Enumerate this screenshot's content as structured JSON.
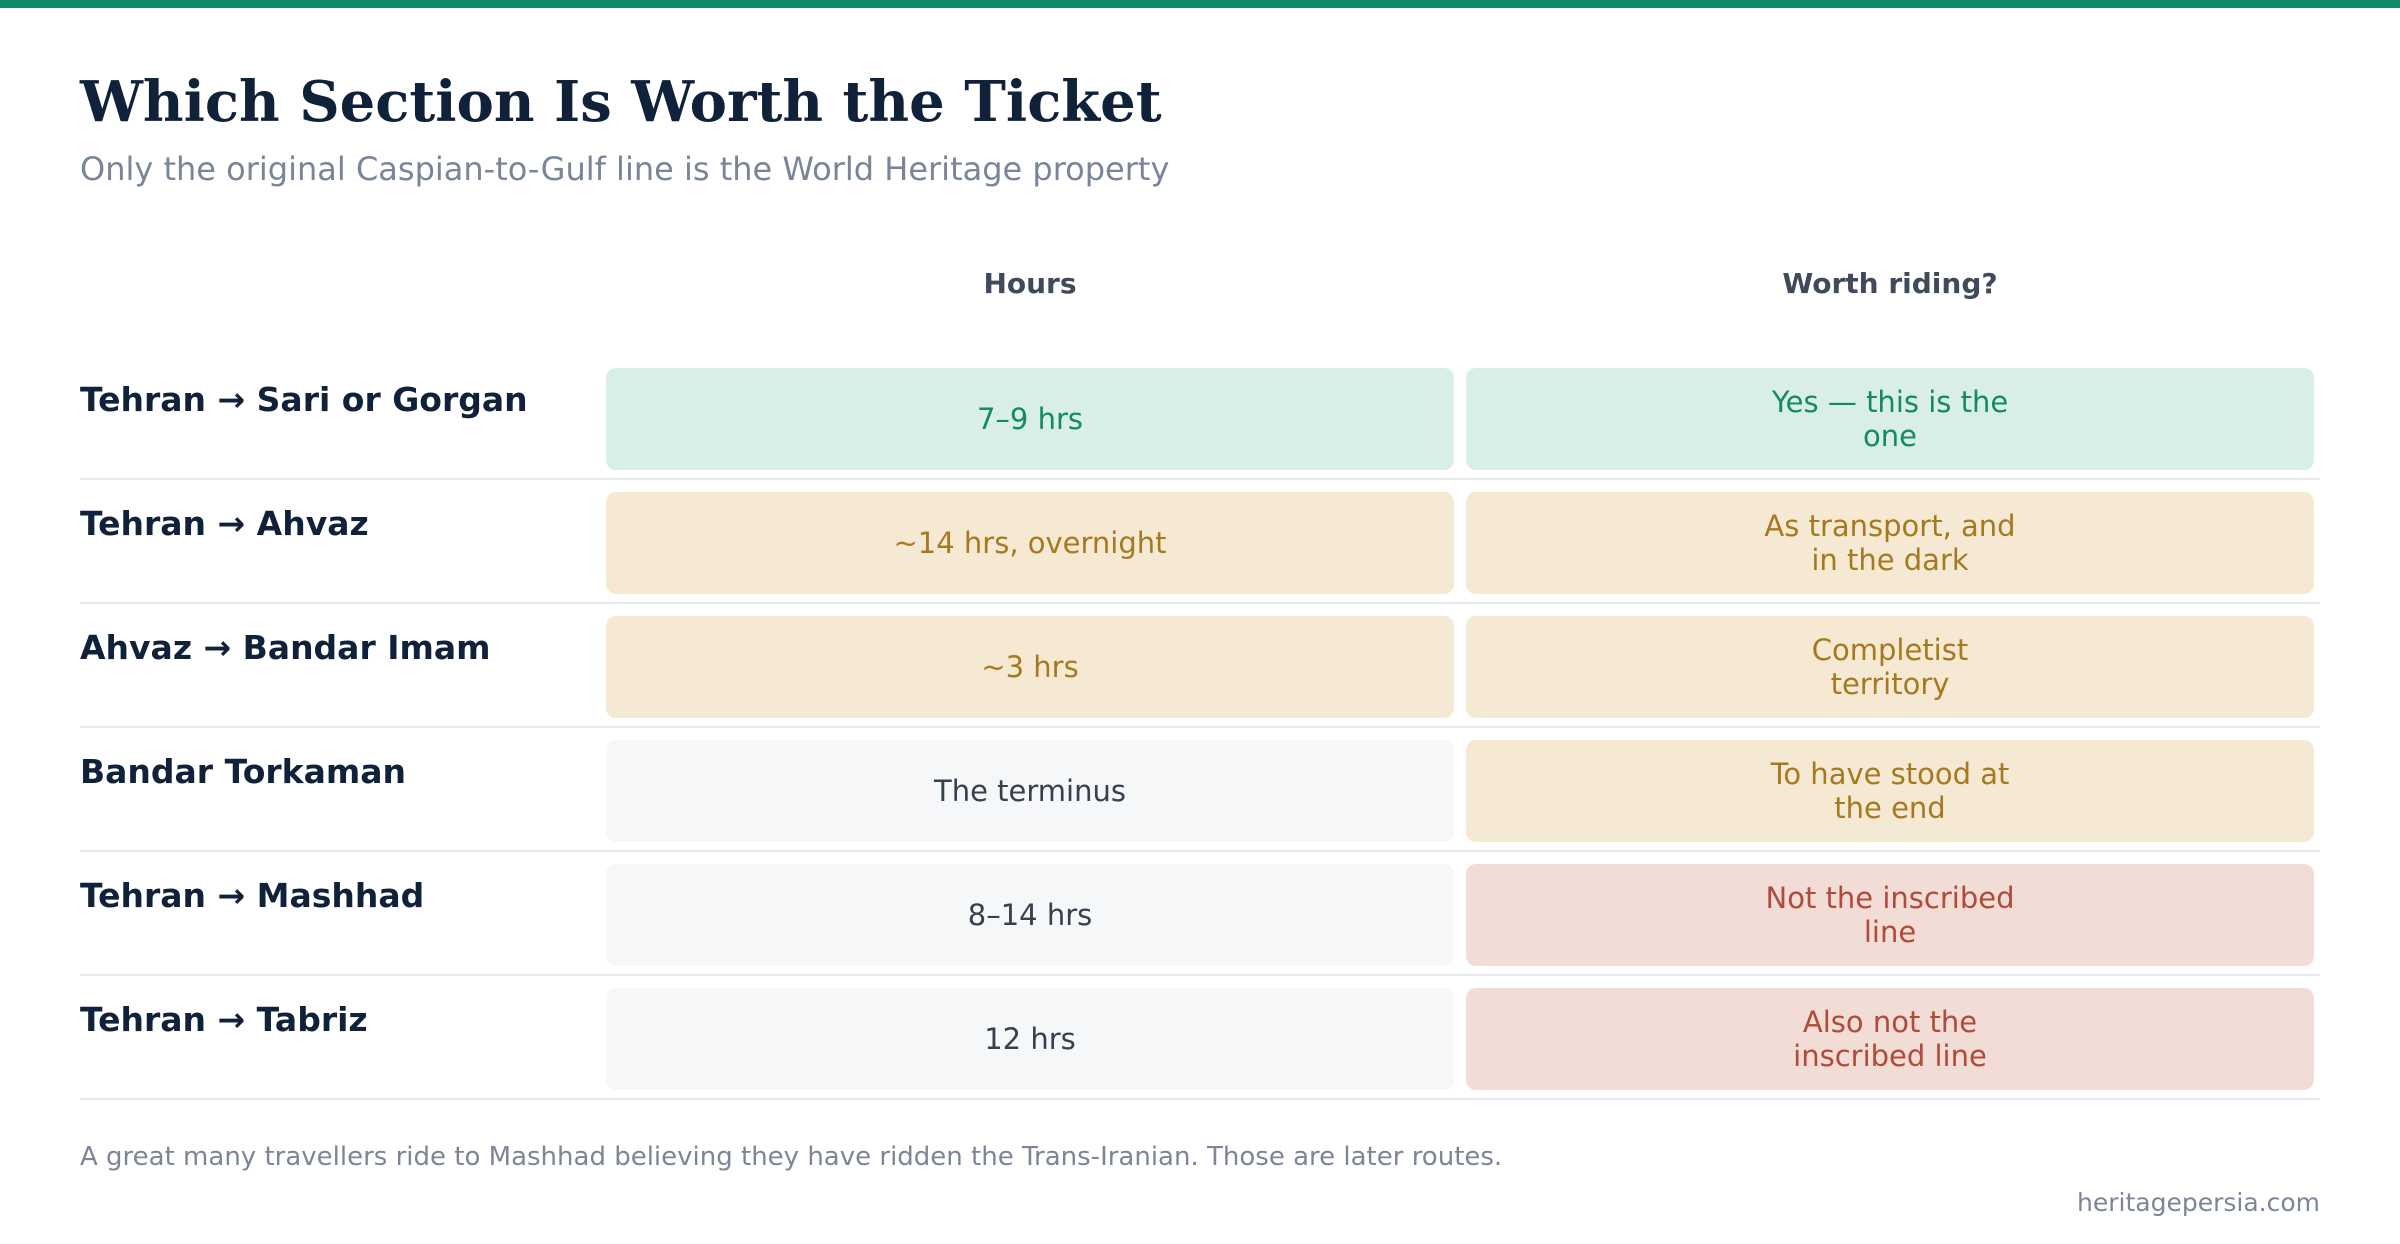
{
  "colors": {
    "accent": "#128a68",
    "title": "#10213a",
    "tone_green": "#d9efe6",
    "tone_amber": "#f6e9d3",
    "tone_neutral": "#f5f7f9",
    "tone_red": "#f2ddd6"
  },
  "header": {
    "title": "Which Section Is Worth the Ticket",
    "subtitle": "Only the original Caspian-to-Gulf line is the World Heritage property"
  },
  "table": {
    "columns": [
      "Hours",
      "Worth riding?"
    ],
    "rows": [
      {
        "label": "Tehran → Sari or Gorgan",
        "hours": "7–9 hrs",
        "hours_tone": "green",
        "worth": "Yes — this is the one",
        "worth_tone": "green"
      },
      {
        "label": "Tehran → Ahvaz",
        "hours": "~14 hrs, overnight",
        "hours_tone": "amber",
        "worth": "As transport, and in the dark",
        "worth_tone": "amber"
      },
      {
        "label": "Ahvaz → Bandar Imam",
        "hours": "~3 hrs",
        "hours_tone": "amber",
        "worth": "Completist territory",
        "worth_tone": "amber"
      },
      {
        "label": "Bandar Torkaman",
        "hours": "The terminus",
        "hours_tone": "neutral",
        "worth": "To have stood at the end",
        "worth_tone": "amber"
      },
      {
        "label": "Tehran → Mashhad",
        "hours": "8–14 hrs",
        "hours_tone": "neutral",
        "worth": "Not the inscribed line",
        "worth_tone": "red"
      },
      {
        "label": "Tehran → Tabriz",
        "hours": "12 hrs",
        "hours_tone": "neutral",
        "worth": "Also not the inscribed line",
        "worth_tone": "red"
      }
    ]
  },
  "footnote": "A great many travellers ride to Mashhad believing they have ridden the Trans-Iranian. Those are later routes.",
  "source": "heritagepersia.com"
}
